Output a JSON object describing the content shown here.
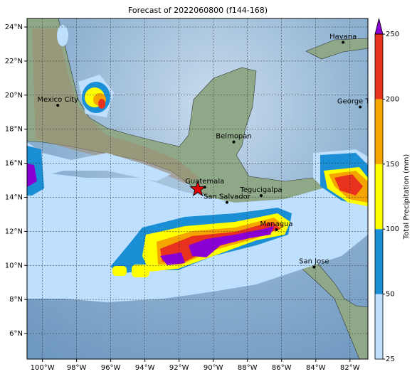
{
  "map": {
    "title": "Forecast of 2022060800 (f144-168)",
    "xlim": [
      -100.9,
      -80.95
    ],
    "ylim": [
      4.5,
      24.5
    ],
    "xticks": [
      {
        "value": -100,
        "label": "100°W"
      },
      {
        "value": -98,
        "label": "98°W"
      },
      {
        "value": -96,
        "label": "96°W"
      },
      {
        "value": -94,
        "label": "94°W"
      },
      {
        "value": -92,
        "label": "92°W"
      },
      {
        "value": -90,
        "label": "90°W"
      },
      {
        "value": -88,
        "label": "88°W"
      },
      {
        "value": -86,
        "label": "86°W"
      },
      {
        "value": -84,
        "label": "84°W"
      },
      {
        "value": -82,
        "label": "82°W"
      }
    ],
    "yticks": [
      {
        "value": 6,
        "label": "6°N"
      },
      {
        "value": 8,
        "label": "8°N"
      },
      {
        "value": 10,
        "label": "10°N"
      },
      {
        "value": 12,
        "label": "12°N"
      },
      {
        "value": 14,
        "label": "14°N"
      },
      {
        "value": 16,
        "label": "16°N"
      },
      {
        "value": 18,
        "label": "18°N"
      },
      {
        "value": 20,
        "label": "20°N"
      },
      {
        "value": 22,
        "label": "22°N"
      },
      {
        "value": 24,
        "label": "24°N"
      }
    ],
    "grid": true,
    "cities": [
      {
        "name": "Mexico City",
        "lon": -99.1,
        "lat": 19.4
      },
      {
        "name": "Havana",
        "lon": -82.4,
        "lat": 23.1
      },
      {
        "name": "George Town",
        "lon": -81.4,
        "lat": 19.3
      },
      {
        "name": "Belmopan",
        "lon": -88.8,
        "lat": 17.25
      },
      {
        "name": "Guatemala",
        "lon": -90.5,
        "lat": 14.6
      },
      {
        "name": "San Salvador",
        "lon": -89.2,
        "lat": 13.7
      },
      {
        "name": "Tegucigalpa",
        "lon": -87.2,
        "lat": 14.1
      },
      {
        "name": "Managua",
        "lon": -86.3,
        "lat": 12.1
      },
      {
        "name": "San Jose",
        "lon": -84.1,
        "lat": 9.9
      }
    ],
    "colorbar": {
      "label": "Total Precipitation (mm)",
      "ticks": [
        25,
        50,
        100,
        150,
        200,
        250
      ],
      "colors": [
        "#bfdfff",
        "#1a8fd6",
        "#ffff00",
        "#f5a500",
        "#e8321e"
      ],
      "extend_color": "#8a00d4"
    }
  }
}
